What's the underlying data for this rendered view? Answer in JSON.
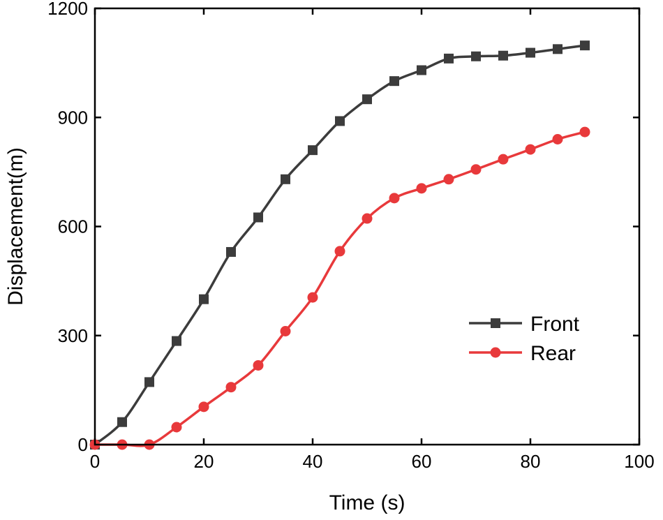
{
  "chart_data": {
    "type": "line",
    "title": "",
    "xlabel": "Time (s)",
    "ylabel": "Displacement(m)",
    "xlim": [
      0,
      100
    ],
    "ylim": [
      0,
      1200
    ],
    "xticks": [
      0,
      20,
      40,
      60,
      80,
      100
    ],
    "yticks": [
      0,
      300,
      600,
      900,
      1200
    ],
    "xtick_labels": [
      "0",
      "20",
      "40",
      "60",
      "80",
      "100"
    ],
    "ytick_labels": [
      "0",
      "300",
      "600",
      "900",
      "1200"
    ],
    "legend_position": "lower-right",
    "series": [
      {
        "name": "Front",
        "color": "#3c3c3c",
        "marker": "square",
        "x": [
          0,
          5,
          10,
          15,
          20,
          25,
          30,
          35,
          40,
          45,
          50,
          55,
          60,
          65,
          70,
          75,
          80,
          85,
          90
        ],
        "y": [
          0,
          62,
          172,
          285,
          400,
          530,
          625,
          730,
          810,
          890,
          950,
          1000,
          1030,
          1062,
          1068,
          1070,
          1078,
          1088,
          1098
        ]
      },
      {
        "name": "Rear",
        "color": "#e8393b",
        "marker": "circle",
        "x": [
          0,
          5,
          10,
          15,
          20,
          25,
          30,
          35,
          40,
          45,
          50,
          55,
          60,
          65,
          70,
          75,
          80,
          85,
          90
        ],
        "y": [
          0,
          0,
          0,
          48,
          104,
          158,
          218,
          312,
          405,
          532,
          622,
          678,
          705,
          730,
          757,
          785,
          812,
          840,
          860
        ]
      }
    ]
  }
}
